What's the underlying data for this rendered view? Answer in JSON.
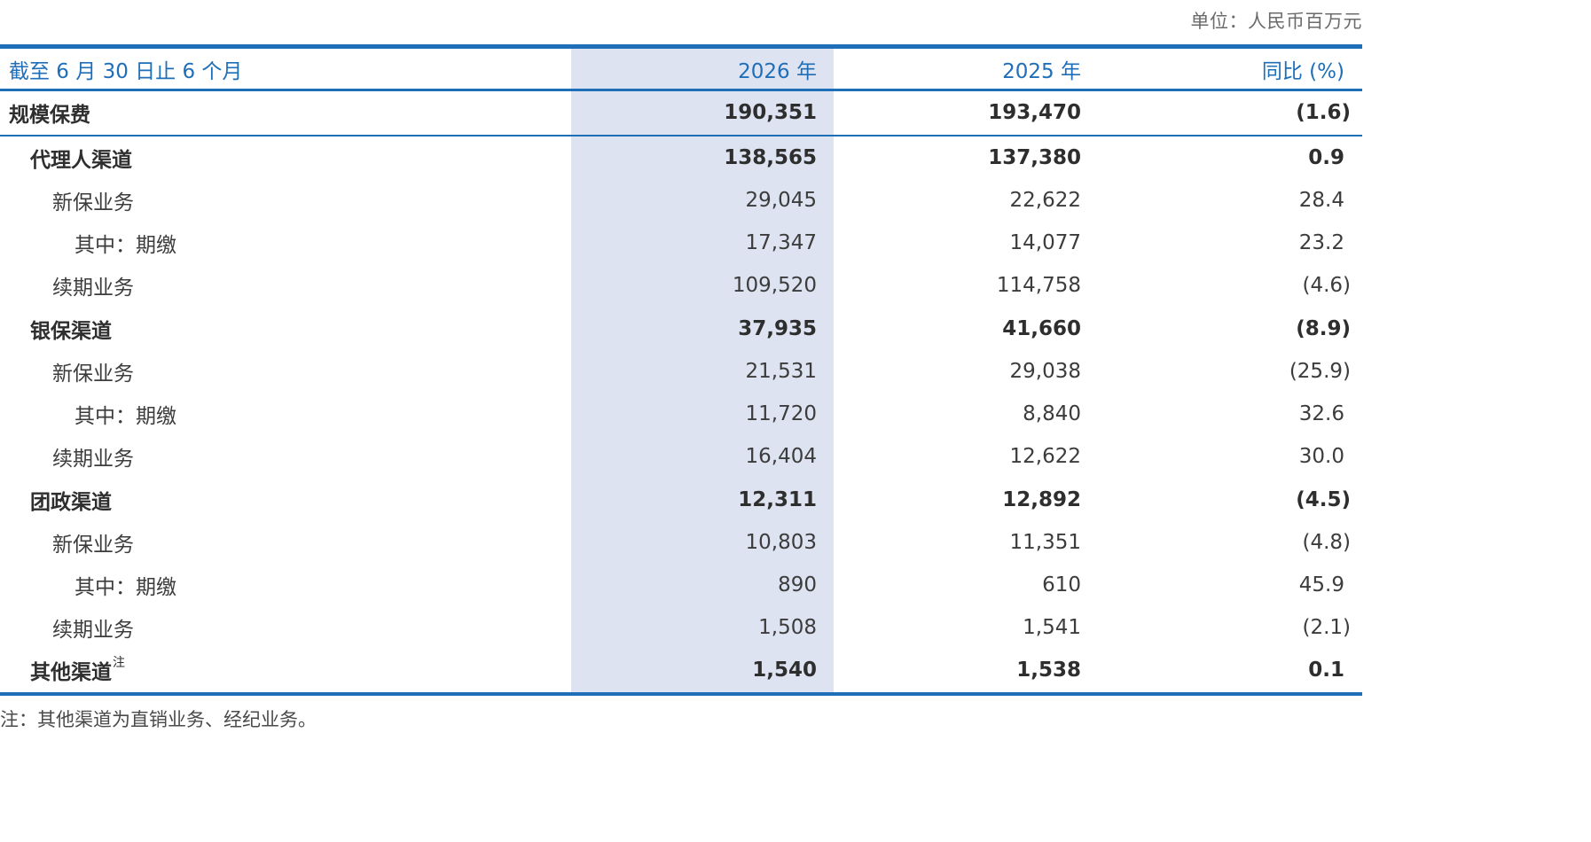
{
  "unit": "单位：人民币百万元",
  "header": {
    "period": "截至 6 月 30 日止 6 个月",
    "col_2026": "2026 年",
    "col_2025": "2025 年",
    "col_yoy": "同比 (%)"
  },
  "rows": [
    {
      "label": "规模保费",
      "v2026": "190,351",
      "v2025": "193,470",
      "yoy": "(1.6)"
    },
    {
      "label": "代理人渠道",
      "v2026": "138,565",
      "v2025": "137,380",
      "yoy": "0.9"
    },
    {
      "label": "新保业务",
      "v2026": "29,045",
      "v2025": "22,622",
      "yoy": "28.4"
    },
    {
      "label": "其中：期缴",
      "v2026": "17,347",
      "v2025": "14,077",
      "yoy": "23.2"
    },
    {
      "label": "续期业务",
      "v2026": "109,520",
      "v2025": "114,758",
      "yoy": "(4.6)"
    },
    {
      "label": "银保渠道",
      "v2026": "37,935",
      "v2025": "41,660",
      "yoy": "(8.9)"
    },
    {
      "label": "新保业务",
      "v2026": "21,531",
      "v2025": "29,038",
      "yoy": "(25.9)"
    },
    {
      "label": "其中：期缴",
      "v2026": "11,720",
      "v2025": "8,840",
      "yoy": "32.6"
    },
    {
      "label": "续期业务",
      "v2026": "16,404",
      "v2025": "12,622",
      "yoy": "30.0"
    },
    {
      "label": "团政渠道",
      "v2026": "12,311",
      "v2025": "12,892",
      "yoy": "(4.5)"
    },
    {
      "label": "新保业务",
      "v2026": "10,803",
      "v2025": "11,351",
      "yoy": "(4.8)"
    },
    {
      "label": "其中：期缴",
      "v2026": "890",
      "v2025": "610",
      "yoy": "45.9"
    },
    {
      "label": "续期业务",
      "v2026": "1,508",
      "v2025": "1,541",
      "yoy": "(2.1)"
    },
    {
      "label": "其他渠道",
      "note": "注",
      "v2026": "1,540",
      "v2025": "1,538",
      "yoy": "0.1"
    }
  ],
  "footnote": "注：其他渠道为直销业务、经纪业务。"
}
